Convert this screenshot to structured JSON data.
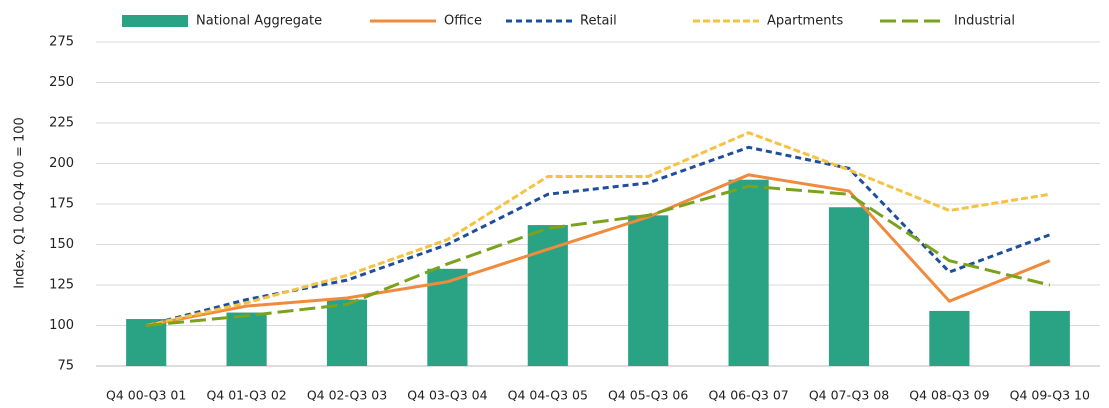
{
  "chart_data": {
    "type": "bar",
    "y_axis_label": "Index, Q1 00-Q4 00 = 100",
    "categories": [
      "Q4 00-Q3 01",
      "Q4 01-Q3 02",
      "Q4 02-Q3 03",
      "Q4 03-Q3 04",
      "Q4 04-Q3 05",
      "Q4 05-Q3 06",
      "Q4 06-Q3 07",
      "Q4 07-Q3 08",
      "Q4 08-Q3 09",
      "Q4 09-Q3 10"
    ],
    "series": [
      {
        "name": "National Aggregate",
        "type": "bar",
        "color": "#2aa384",
        "values": [
          104,
          108,
          116,
          135,
          162,
          168,
          190,
          173,
          109,
          109
        ]
      },
      {
        "name": "Office",
        "type": "line",
        "dash": "solid",
        "color": "#f08a3c",
        "values": [
          100,
          112,
          117,
          127,
          147,
          167,
          193,
          183,
          115,
          140
        ]
      },
      {
        "name": "Retail",
        "type": "line",
        "dash": "dotted",
        "color": "#1f4e9c",
        "values": [
          100,
          116,
          128,
          150,
          181,
          188,
          210,
          197,
          133,
          156
        ]
      },
      {
        "name": "Apartments",
        "type": "line",
        "dash": "dashed",
        "color": "#f5c242",
        "values": [
          100,
          114,
          131,
          153,
          192,
          192,
          219,
          196,
          171,
          181
        ]
      },
      {
        "name": "Industrial",
        "type": "line",
        "dash": "longdash",
        "color": "#7aa21d",
        "values": [
          100,
          106,
          113,
          138,
          160,
          168,
          186,
          181,
          140,
          125
        ]
      }
    ],
    "ylim": [
      75,
      275
    ],
    "yticks": [
      75,
      100,
      125,
      150,
      175,
      200,
      225,
      250,
      275
    ],
    "grid": true,
    "legend": "top"
  }
}
